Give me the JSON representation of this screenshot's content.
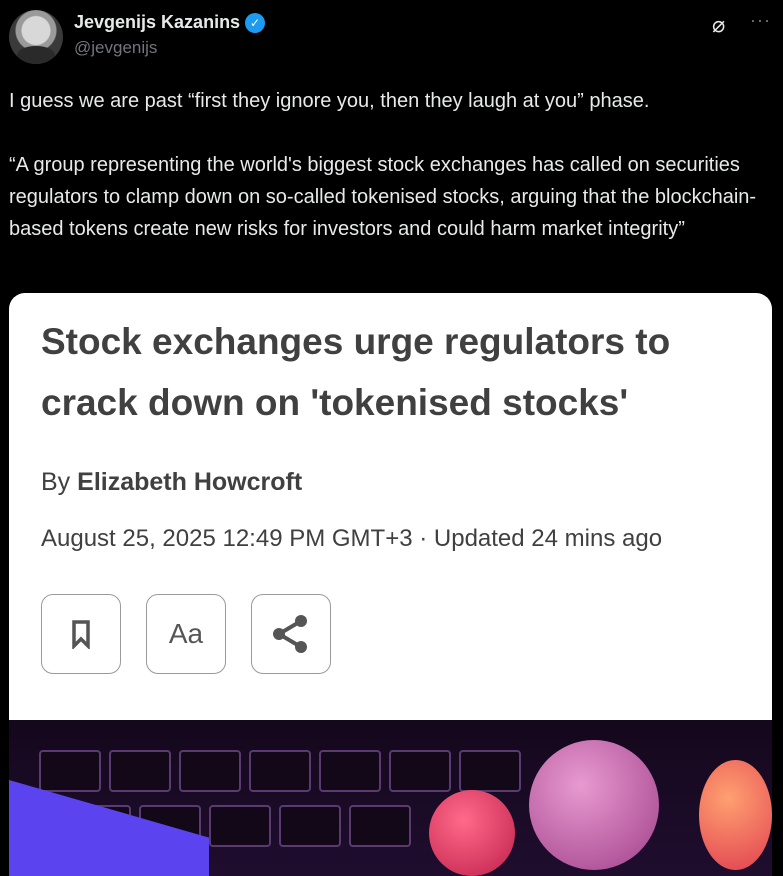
{
  "author": {
    "name": "Jevgenijs Kazanins",
    "handle": "@jevgenijs",
    "verified": true,
    "verified_color": "#1d9bf0"
  },
  "icons": {
    "grok": "grok-icon",
    "more": "more-icon"
  },
  "tweet": {
    "line1": "I guess we are past “first they ignore you, then they laugh at you” phase.",
    "quote": "“A group representing the world's biggest stock exchanges has called on securities regulators to clamp down on so-called tokenised stocks, arguing that the blockchain-based tokens create new risks for investors and could harm market integrity”"
  },
  "article": {
    "headline": "Stock exchanges urge regulators to crack down on 'tokenised stocks'",
    "by": "By",
    "author": "Elizabeth Howcroft",
    "date": "August 25, 2025 12:49 PM GMT+3 · Updated 24 mins ago",
    "font_button": "Aa"
  }
}
